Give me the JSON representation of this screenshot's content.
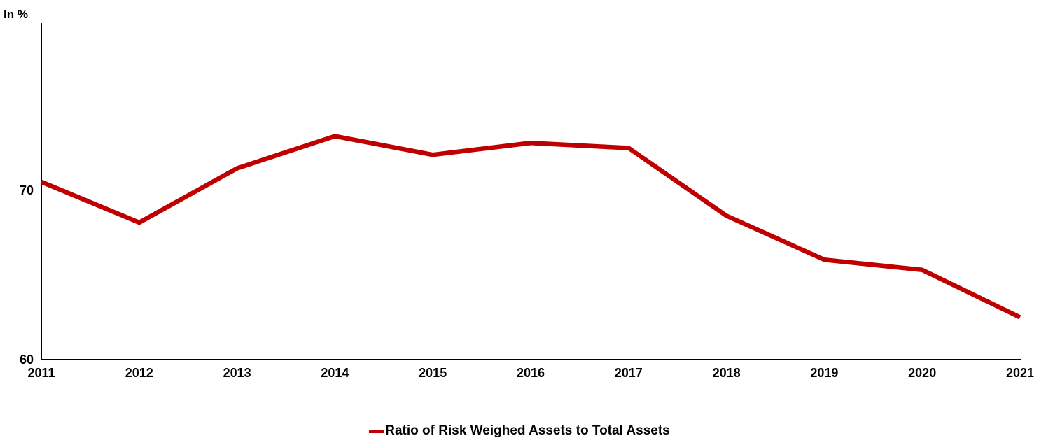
{
  "chart_data": {
    "type": "line",
    "title": "",
    "ylabel": "In %",
    "xlabel": "",
    "categories": [
      "2011",
      "2012",
      "2013",
      "2014",
      "2015",
      "2016",
      "2017",
      "2018",
      "2019",
      "2020",
      "2021"
    ],
    "series": [
      {
        "name": "Ratio of Risk Weighed Assets to Total Assets",
        "values": [
          70.5,
          68.1,
          71.3,
          73.2,
          72.1,
          72.8,
          72.5,
          68.5,
          65.9,
          65.3,
          62.5
        ],
        "color": "#C00000"
      }
    ],
    "ylim": [
      60,
      80
    ],
    "yticks": [
      60,
      70
    ],
    "grid": false,
    "legend_position": "bottom",
    "axis_color": "#000000",
    "background_color": "#ffffff"
  }
}
